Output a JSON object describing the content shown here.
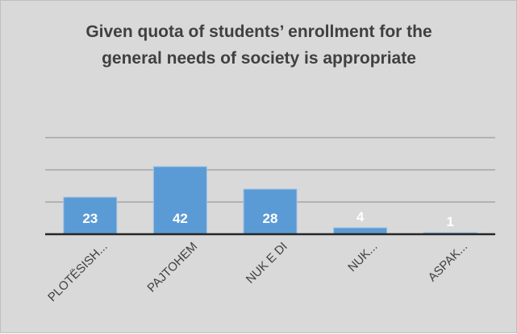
{
  "chart_data": {
    "type": "bar",
    "title": "Given quota of students’ enrollment for the general needs of society is appropriate",
    "categories": [
      "PLOTËSISH...",
      "PAJTOHEM",
      "NUK E DI",
      "NUK...",
      "ASPAK..."
    ],
    "values": [
      23,
      42,
      28,
      4,
      1
    ],
    "xlabel": "",
    "ylabel": "",
    "ylim": [
      0,
      60
    ],
    "grid": true,
    "legend": "none",
    "colors": {
      "bar": "#5b9bd5",
      "bar_border": "#9dc3e6",
      "background": "#d9d9d9",
      "gridline": "#8c8c8c",
      "axis": "#262626"
    }
  }
}
